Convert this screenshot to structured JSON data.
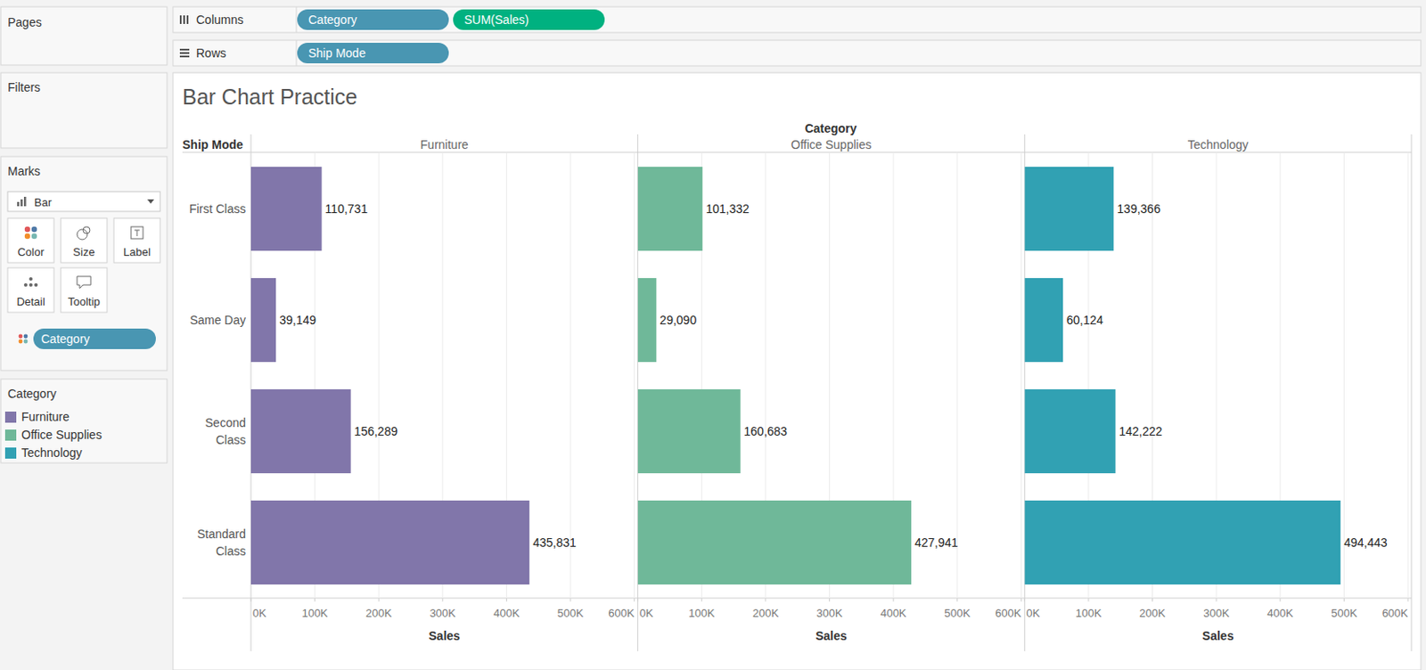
{
  "chart_data": {
    "type": "bar",
    "title": "Bar Chart Practice",
    "orientation": "horizontal",
    "grid": true,
    "data_labels": true,
    "x_label": "Sales",
    "y_label": "Ship Mode",
    "facet_label": "Category",
    "categories": [
      "First Class",
      "Same Day",
      "Second Class",
      "Standard Class"
    ],
    "series": [
      {
        "name": "Furniture",
        "color": "#8176aa",
        "values": [
          110731,
          39149,
          156289,
          435831
        ],
        "value_labels": [
          "110,731",
          "39,149",
          "156,289",
          "435,831"
        ]
      },
      {
        "name": "Office Supplies",
        "color": "#6fb899",
        "values": [
          101332,
          29090,
          160683,
          427941
        ],
        "value_labels": [
          "101,332",
          "29,090",
          "160,683",
          "427,941"
        ]
      },
      {
        "name": "Technology",
        "color": "#31a1b3",
        "values": [
          139366,
          60124,
          142222,
          494443
        ],
        "value_labels": [
          "139,366",
          "60,124",
          "142,222",
          "494,443"
        ]
      }
    ],
    "xlim": [
      0,
      600000
    ],
    "xticks": [
      {
        "value": 0,
        "label": "0K"
      },
      {
        "value": 100000,
        "label": "100K"
      },
      {
        "value": 200000,
        "label": "200K"
      },
      {
        "value": 300000,
        "label": "300K"
      },
      {
        "value": 400000,
        "label": "400K"
      },
      {
        "value": 500000,
        "label": "500K"
      },
      {
        "value": 600000,
        "label": "600K"
      }
    ]
  },
  "ui": {
    "pages": "Pages",
    "columns_label": "Columns",
    "columns": [
      "Category",
      "SUM(Sales)"
    ],
    "rows_label": "Rows",
    "rows": [
      "Ship Mode"
    ],
    "filters": "Filters",
    "marks": "Marks",
    "mark_type": "Bar",
    "mark_buttons": [
      "Color",
      "Size",
      "Label",
      "Detail",
      "Tooltip"
    ],
    "marks_pill": "Category",
    "legend_title": "Category"
  }
}
